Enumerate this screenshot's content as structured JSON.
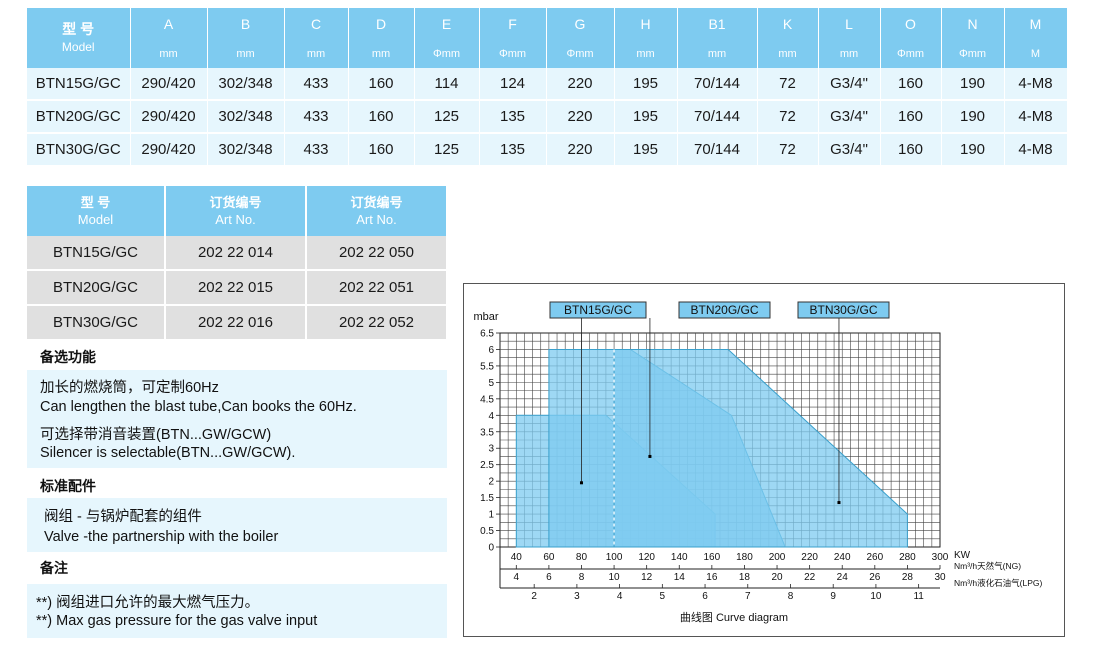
{
  "dimension_table": {
    "model_head_cn": "型 号",
    "model_head_en": "Model",
    "columns": [
      {
        "name": "A",
        "unit": "mm"
      },
      {
        "name": "B",
        "unit": "mm"
      },
      {
        "name": "C",
        "unit": "mm"
      },
      {
        "name": "D",
        "unit": "mm"
      },
      {
        "name": "E",
        "unit": "Φmm"
      },
      {
        "name": "F",
        "unit": "Φmm"
      },
      {
        "name": "G",
        "unit": "Φmm"
      },
      {
        "name": "H",
        "unit": "mm"
      },
      {
        "name": "B1",
        "unit": "mm"
      },
      {
        "name": "K",
        "unit": "mm"
      },
      {
        "name": "L",
        "unit": "mm"
      },
      {
        "name": "O",
        "unit": "Φmm"
      },
      {
        "name": "N",
        "unit": "Φmm"
      },
      {
        "name": "M",
        "unit": "M"
      }
    ],
    "rows": [
      {
        "model": "BTN15G/GC",
        "values": [
          "290/420",
          "302/348",
          "433",
          "160",
          "114",
          "124",
          "220",
          "195",
          "70/144",
          "72",
          "G3/4\"",
          "160",
          "190",
          "4-M8"
        ]
      },
      {
        "model": "BTN20G/GC",
        "values": [
          "290/420",
          "302/348",
          "433",
          "160",
          "125",
          "135",
          "220",
          "195",
          "70/144",
          "72",
          "G3/4\"",
          "160",
          "190",
          "4-M8"
        ]
      },
      {
        "model": "BTN30G/GC",
        "values": [
          "290/420",
          "302/348",
          "433",
          "160",
          "125",
          "135",
          "220",
          "195",
          "70/144",
          "72",
          "G3/4\"",
          "160",
          "190",
          "4-M8"
        ]
      }
    ]
  },
  "art_table": {
    "headers": [
      {
        "cn": "型 号",
        "en": "Model"
      },
      {
        "cn": "订货编号",
        "en": "Art No."
      },
      {
        "cn": "订货编号",
        "en": "Art No."
      }
    ],
    "rows": [
      [
        "BTN15G/GC",
        "202 22 014",
        "202 22 050"
      ],
      [
        "BTN20G/GC",
        "202 22 015",
        "202 22 051"
      ],
      [
        "BTN30G/GC",
        "202 22 016",
        "202 22 052"
      ]
    ]
  },
  "optional_features": {
    "title": "备选功能",
    "lines": [
      "加长的燃烧筒，可定制60Hz",
      "Can lengthen the blast tube,Can books the 60Hz.",
      "可选择带消音装置(BTN...GW/GCW)",
      "Silencer is selectable(BTN...GW/GCW)."
    ]
  },
  "standard_parts": {
    "title": "标准配件",
    "lines": [
      "阀组 - 与锅炉配套的组件",
      "Valve -the partnership with the boiler"
    ]
  },
  "notes": {
    "title": "备注",
    "lines": [
      "**) 阀组进口允许的最大燃气压力。",
      "**) Max gas pressure for the gas valve input"
    ]
  },
  "chart_data": {
    "type": "area",
    "caption": "曲线图 Curve diagram",
    "ylabel": "mbar",
    "ylim": [
      0,
      6.5
    ],
    "yticks": [
      0,
      0.5,
      1,
      1.5,
      2,
      2.5,
      3,
      3.5,
      4,
      4.5,
      5,
      5.5,
      6,
      6.5
    ],
    "xlabel": "KW",
    "xlim": [
      30,
      300
    ],
    "xticks": [
      40,
      60,
      80,
      100,
      120,
      140,
      160,
      180,
      200,
      220,
      240,
      260,
      280,
      300
    ],
    "ng_axis_label": "Nm³/h天然气(NG)",
    "ng_ticks": [
      4,
      6,
      8,
      10,
      12,
      14,
      16,
      18,
      20,
      22,
      24,
      26,
      28,
      30
    ],
    "lpg_axis_label": "Nm³/h液化石油气(LPG)",
    "lpg_ticks": [
      2,
      3,
      4,
      5,
      6,
      7,
      8,
      9,
      10,
      11
    ],
    "grid": true,
    "fill_color": "#7ecbf0",
    "series": [
      {
        "name": "BTN15G/GC",
        "x": [
          40,
          40,
          95,
          162,
          162
        ],
        "y": [
          0,
          4,
          4,
          1,
          0
        ],
        "marker": [
          80,
          1.95
        ]
      },
      {
        "name": "BTN20G/GC",
        "x": [
          60,
          60,
          110,
          172,
          205
        ],
        "y": [
          0,
          6,
          6,
          4,
          0
        ],
        "marker": [
          122,
          2.75
        ]
      },
      {
        "name": "BTN30G/GC",
        "x": [
          100,
          100,
          170,
          280,
          280
        ],
        "y": [
          0,
          6,
          6,
          1,
          0
        ],
        "marker": [
          238,
          1.35
        ]
      }
    ]
  }
}
